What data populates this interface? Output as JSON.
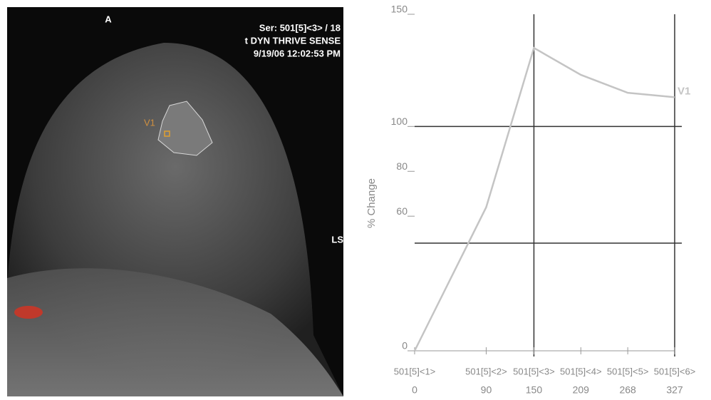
{
  "image": {
    "orientation": "A",
    "series_info": "Ser: 501[5]<3>  / 18",
    "sequence": "t DYN THRIVE SENSE",
    "timestamp": "9/19/06 12:02:53 PM",
    "roi_label": "V1",
    "side_label": "LS"
  },
  "chart_data": {
    "type": "line",
    "y_label": "% Change",
    "x": [
      0,
      90,
      150,
      209,
      268,
      327
    ],
    "x_labels": [
      "501[5]<1>",
      "501[5]<2>",
      "501[5]<3>",
      "501[5]<4>",
      "501[5]<5>",
      "501[5]<6>"
    ],
    "xlim": [
      0,
      327
    ],
    "xticks": [
      0,
      90,
      150,
      209,
      268,
      327
    ],
    "ylim": [
      0,
      150
    ],
    "yticks": [
      0,
      60,
      80,
      100,
      150
    ],
    "hlines": [
      100,
      48
    ],
    "vlines": [
      150,
      327
    ],
    "series": [
      {
        "name": "V1",
        "color": "#c4c4c4",
        "values": [
          0,
          64,
          135,
          123,
          115,
          113
        ]
      }
    ]
  }
}
